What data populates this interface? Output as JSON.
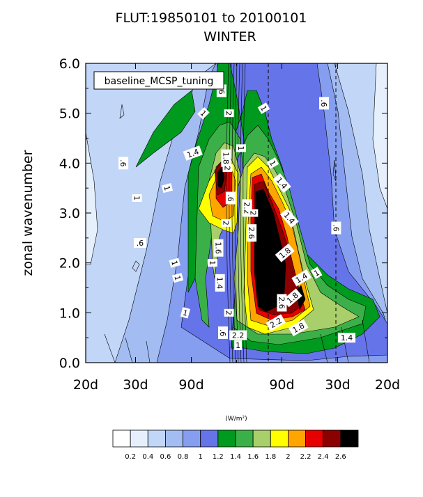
{
  "chart_data": {
    "type": "heatmap",
    "title": "FLUT:19850101 to 20100101",
    "subtitle": "WINTER",
    "ylabel": "zonal wavenumber",
    "xlabel": "",
    "ylim": [
      0,
      6
    ],
    "yticks": [
      "0.0",
      "1.0",
      "2.0",
      "3.0",
      "4.0",
      "5.0",
      "6.0"
    ],
    "xticks": [
      "20d",
      "30d",
      "90d",
      "90d",
      "30d",
      "20d"
    ],
    "legend_box": "baseline_MCSP_tuning",
    "colorbar": {
      "unit": "(W/m²)",
      "levels": [
        "0.2",
        "0.4",
        "0.6",
        "0.8",
        "1",
        "1.2",
        "1.4",
        "1.6",
        "1.8",
        "2",
        "2.2",
        "2.4",
        "2.6"
      ],
      "colors": [
        "#ffffff",
        "#e6f0fc",
        "#c2d6f8",
        "#a3bdf3",
        "#859ef0",
        "#6674ea",
        "#009a1f",
        "#3cb048",
        "#a8cf69",
        "#ffff00",
        "#ffa500",
        "#e60000",
        "#8b0000",
        "#000000"
      ]
    },
    "contour_labels": [
      {
        "text": ".6",
        "x": -0.1,
        "y": 5.45,
        "rot": 90
      },
      {
        "text": "1",
        "x": -0.22,
        "y": 5.0,
        "rot": 45
      },
      {
        "text": "1.4",
        "x": -0.29,
        "y": 4.2,
        "rot": -20
      },
      {
        "text": "1.8",
        "x": -0.07,
        "y": 4.1,
        "rot": 90
      },
      {
        "text": "2",
        "x": -0.05,
        "y": 5.0,
        "rot": 90
      },
      {
        "text": "2",
        "x": -0.06,
        "y": 3.9,
        "rot": 90
      },
      {
        "text": ".6",
        "x": -0.04,
        "y": 3.3,
        "rot": 90
      },
      {
        "text": "2",
        "x": -0.07,
        "y": 2.8,
        "rot": 90
      },
      {
        "text": "1.6",
        "x": -0.12,
        "y": 2.3,
        "rot": 90
      },
      {
        "text": "1",
        "x": -0.16,
        "y": 2.0,
        "rot": 90
      },
      {
        "text": "1.4",
        "x": -0.11,
        "y": 1.6,
        "rot": 90
      },
      {
        "text": "2",
        "x": -0.05,
        "y": 1.0,
        "rot": 90
      },
      {
        "text": ".6",
        "x": -0.09,
        "y": 0.6,
        "rot": 90
      },
      {
        "text": "1",
        "x": -0.46,
        "y": 3.5,
        "rot": 75
      },
      {
        "text": "1",
        "x": -0.41,
        "y": 2.0,
        "rot": 75
      },
      {
        "text": "1",
        "x": -0.39,
        "y": 1.7,
        "rot": 75
      },
      {
        "text": "1",
        "x": -0.34,
        "y": 1.0,
        "rot": 15
      },
      {
        "text": ".6",
        "x": -0.75,
        "y": 4.0,
        "rot": 90
      },
      {
        "text": "1",
        "x": -0.66,
        "y": 3.3,
        "rot": 90
      },
      {
        "text": ".6",
        "x": -0.64,
        "y": 2.4,
        "rot": 0
      },
      {
        "text": "1",
        "x": 0.03,
        "y": 4.3,
        "rot": 90
      },
      {
        "text": "2.2",
        "x": 0.07,
        "y": 3.1,
        "rot": 90
      },
      {
        "text": "2.6",
        "x": 0.1,
        "y": 2.6,
        "rot": 90
      },
      {
        "text": "2",
        "x": 0.11,
        "y": 3.0,
        "rot": 90
      },
      {
        "text": "1",
        "x": 0.18,
        "y": 5.1,
        "rot": 60
      },
      {
        "text": "1",
        "x": 0.24,
        "y": 4.0,
        "rot": 60
      },
      {
        "text": "1.4",
        "x": 0.3,
        "y": 3.6,
        "rot": 50
      },
      {
        "text": "1.4",
        "x": 0.35,
        "y": 2.9,
        "rot": 50
      },
      {
        "text": "1.8",
        "x": 0.32,
        "y": 2.2,
        "rot": -40
      },
      {
        "text": "1.4",
        "x": 0.43,
        "y": 1.7,
        "rot": -30
      },
      {
        "text": "1.8",
        "x": 0.37,
        "y": 1.3,
        "rot": -40
      },
      {
        "text": "2.6",
        "x": 0.3,
        "y": 1.2,
        "rot": 90
      },
      {
        "text": "2.2",
        "x": 0.26,
        "y": 0.8,
        "rot": -30
      },
      {
        "text": "2.2",
        "x": 0.01,
        "y": 0.55,
        "rot": 0
      },
      {
        "text": "1.8",
        "x": 0.41,
        "y": 0.7,
        "rot": -30
      },
      {
        "text": "1",
        "x": 0.53,
        "y": 1.8,
        "rot": -30
      },
      {
        "text": "1.4",
        "x": 0.73,
        "y": 0.5,
        "rot": 0
      },
      {
        "text": "1",
        "x": 0.01,
        "y": 0.35,
        "rot": 0
      },
      {
        "text": ".6",
        "x": 0.58,
        "y": 5.2,
        "rot": 90
      },
      {
        "text": ".6",
        "x": 0.66,
        "y": 2.7,
        "rot": 90
      }
    ]
  }
}
